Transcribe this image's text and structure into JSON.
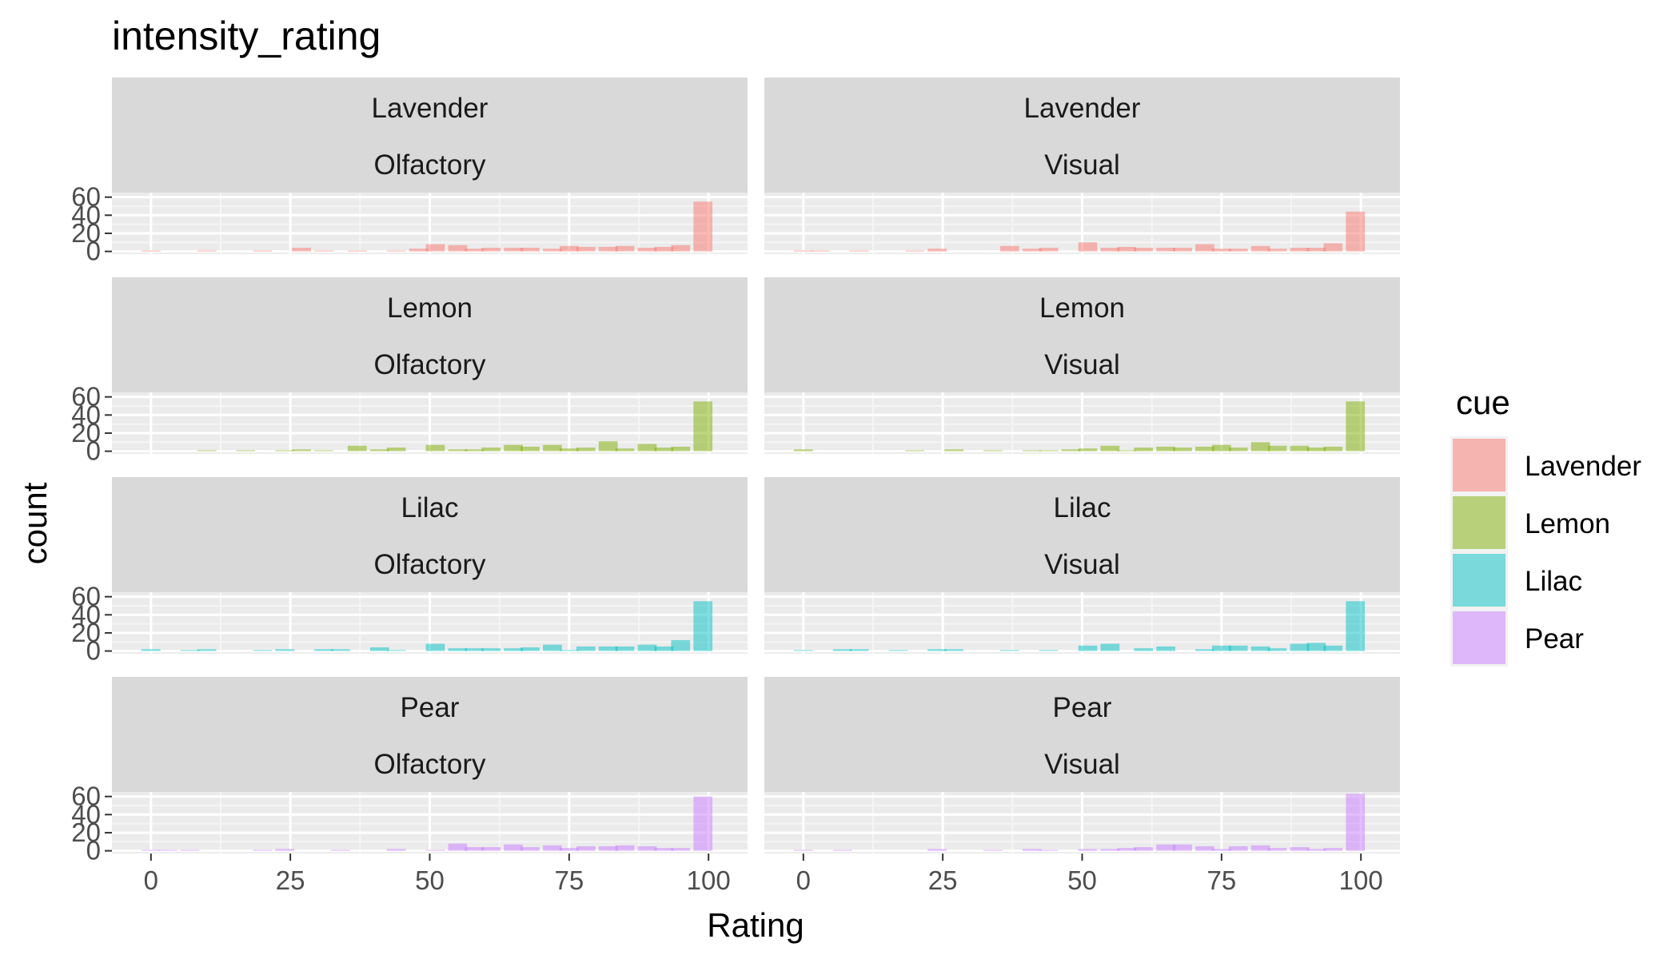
{
  "chart_data": {
    "type": "histogram",
    "title": "intensity_rating",
    "xlabel": "Rating",
    "ylabel": "count",
    "x_ticks": [
      0,
      25,
      50,
      75,
      100
    ],
    "y_ticks": [
      0,
      20,
      40,
      60
    ],
    "xlim": [
      -7,
      107
    ],
    "ylim": [
      -3,
      65
    ],
    "bin_width": 3.4,
    "grid": true,
    "legend": {
      "title": "cue",
      "position": "right",
      "items": [
        {
          "name": "Lavender",
          "color": "#F8766D"
        },
        {
          "name": "Lemon",
          "color": "#7CAE00"
        },
        {
          "name": "Lilac",
          "color": "#00BFC4"
        },
        {
          "name": "Pear",
          "color": "#C77CFF"
        }
      ]
    },
    "facets": [
      {
        "cue": "Lavender",
        "modality": "Olfactory",
        "color": "#F8766D",
        "bin_centers": [
          0,
          10,
          20,
          27,
          31,
          37,
          44,
          48,
          51,
          55,
          58,
          61,
          65,
          68,
          72,
          75,
          78,
          82,
          85,
          89,
          92,
          95,
          99
        ],
        "counts": [
          1,
          1,
          1,
          4,
          1,
          1,
          1,
          3,
          8,
          7,
          3,
          4,
          4,
          4,
          3,
          6,
          5,
          5,
          6,
          4,
          5,
          7,
          55
        ]
      },
      {
        "cue": "Lavender",
        "modality": "Visual",
        "color": "#F8766D",
        "bin_centers": [
          0,
          3,
          10,
          20,
          24,
          37,
          41,
          44,
          51,
          55,
          58,
          61,
          65,
          68,
          72,
          75,
          78,
          82,
          85,
          89,
          92,
          95,
          99
        ],
        "counts": [
          1,
          1,
          1,
          1,
          3,
          6,
          3,
          4,
          10,
          4,
          5,
          4,
          4,
          4,
          8,
          3,
          3,
          6,
          3,
          4,
          4,
          9,
          44
        ]
      },
      {
        "cue": "Lemon",
        "modality": "Olfactory",
        "color": "#7CAE00",
        "bin_centers": [
          10,
          17,
          24,
          27,
          31,
          37,
          41,
          44,
          51,
          55,
          58,
          61,
          65,
          68,
          72,
          75,
          78,
          82,
          85,
          89,
          92,
          95,
          99
        ],
        "counts": [
          1,
          1,
          1,
          2,
          1,
          6,
          2,
          4,
          7,
          2,
          2,
          4,
          7,
          5,
          7,
          3,
          4,
          11,
          3,
          8,
          4,
          5,
          55
        ]
      },
      {
        "cue": "Lemon",
        "modality": "Visual",
        "color": "#7CAE00",
        "bin_centers": [
          0,
          20,
          27,
          34,
          41,
          44,
          48,
          51,
          55,
          58,
          61,
          65,
          68,
          72,
          75,
          78,
          82,
          85,
          89,
          92,
          95,
          99
        ],
        "counts": [
          2,
          1,
          2,
          1,
          1,
          1,
          2,
          3,
          6,
          1,
          4,
          5,
          4,
          5,
          7,
          4,
          10,
          6,
          6,
          4,
          5,
          55
        ]
      },
      {
        "cue": "Lilac",
        "modality": "Olfactory",
        "color": "#00BFC4",
        "bin_centers": [
          0,
          7,
          10,
          20,
          24,
          31,
          34,
          41,
          44,
          51,
          55,
          58,
          61,
          65,
          68,
          72,
          75,
          78,
          82,
          85,
          89,
          92,
          95,
          99
        ],
        "counts": [
          2,
          1,
          2,
          1,
          2,
          2,
          2,
          4,
          1,
          8,
          3,
          3,
          3,
          3,
          4,
          7,
          1,
          5,
          5,
          5,
          7,
          5,
          12,
          55
        ]
      },
      {
        "cue": "Lilac",
        "modality": "Visual",
        "color": "#00BFC4",
        "bin_centers": [
          0,
          7,
          10,
          17,
          24,
          27,
          37,
          44,
          51,
          55,
          61,
          65,
          72,
          75,
          78,
          82,
          85,
          89,
          92,
          95,
          99
        ],
        "counts": [
          1,
          2,
          2,
          1,
          2,
          2,
          1,
          1,
          6,
          8,
          3,
          5,
          2,
          6,
          6,
          5,
          3,
          8,
          9,
          6,
          55
        ]
      },
      {
        "cue": "Pear",
        "modality": "Olfactory",
        "color": "#C77CFF",
        "bin_centers": [
          0,
          3,
          7,
          20,
          24,
          34,
          44,
          51,
          55,
          58,
          61,
          65,
          68,
          72,
          75,
          78,
          82,
          85,
          89,
          92,
          95,
          99
        ],
        "counts": [
          1,
          1,
          1,
          1,
          2,
          1,
          2,
          1,
          8,
          4,
          4,
          7,
          4,
          6,
          3,
          5,
          5,
          6,
          5,
          3,
          3,
          60
        ]
      },
      {
        "cue": "Pear",
        "modality": "Visual",
        "color": "#C77CFF",
        "bin_centers": [
          0,
          7,
          24,
          34,
          41,
          44,
          51,
          55,
          58,
          61,
          65,
          68,
          72,
          75,
          78,
          82,
          85,
          89,
          92,
          95,
          99
        ],
        "counts": [
          1,
          1,
          2,
          1,
          2,
          1,
          2,
          2,
          3,
          4,
          7,
          7,
          5,
          2,
          5,
          6,
          3,
          4,
          2,
          3,
          63
        ]
      }
    ]
  }
}
